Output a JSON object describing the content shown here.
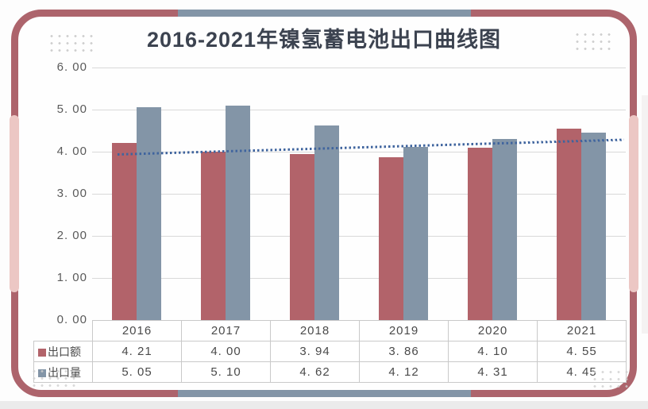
{
  "title": "2016-2021年镍氢蓄电池出口曲线图",
  "chart_data": {
    "type": "bar",
    "title": "2016-2021年镍氢蓄电池出口曲线图",
    "categories": [
      "2016",
      "2017",
      "2018",
      "2019",
      "2020",
      "2021"
    ],
    "series": [
      {
        "name": "出口额",
        "slug": "export-value",
        "color": "#b2636a",
        "values": [
          4.21,
          4.0,
          3.94,
          3.86,
          4.1,
          4.55
        ]
      },
      {
        "name": "出口量",
        "slug": "export-volume",
        "color": "#8395a7",
        "values": [
          5.05,
          5.1,
          4.62,
          4.12,
          4.31,
          4.45
        ]
      }
    ],
    "trendline": {
      "series": "出口量",
      "type": "linear",
      "style": "dotted",
      "color": "#3f649e",
      "start_value": 3.97,
      "end_value": 4.32
    },
    "ylim": [
      0,
      6
    ],
    "ytick_step": 1,
    "ytick_labels": [
      "6. 00",
      "5. 00",
      "4. 00",
      "3. 00",
      "2. 00",
      "1. 00",
      "0. 00"
    ],
    "grid": true,
    "legend_position": "table-row-headers"
  },
  "table": {
    "columns": [
      "2016",
      "2017",
      "2018",
      "2019",
      "2020",
      "2021"
    ],
    "rows": [
      {
        "label": "出口额",
        "slug": "export-value",
        "cells": [
          "4. 21",
          "4. 00",
          "3. 94",
          "3. 86",
          "4. 10",
          "4. 55"
        ]
      },
      {
        "label": "出口量",
        "slug": "export-volume",
        "cells": [
          "5. 05",
          "5. 10",
          "4. 62",
          "4. 12",
          "4. 31",
          "4. 45"
        ]
      }
    ]
  },
  "colors": {
    "card_border": "#ad646c",
    "accent_pink": "#ecc7c4",
    "accent_gray": "#8395a7",
    "bar_red": "#b2636a",
    "bar_gray": "#8395a7",
    "trend_blue": "#3f649e",
    "gridline": "#d9d9d9",
    "title_text": "#3c4350",
    "axis_text": "#5a5a5a"
  }
}
